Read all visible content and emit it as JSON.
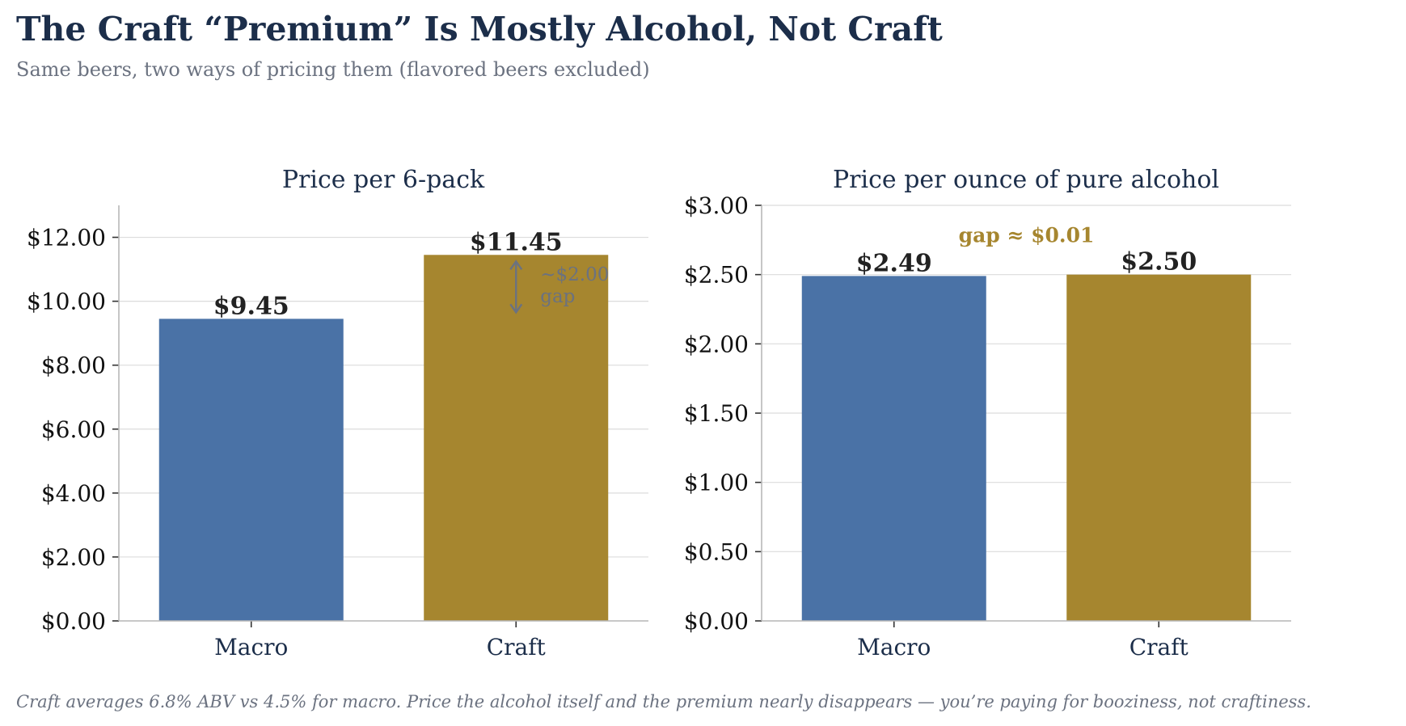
{
  "title": "The Craft “Premium” Is Mostly Alcohol, Not Craft",
  "subtitle": "Same beers, two ways of pricing them (flavored beers excluded)",
  "footnote": "Craft averages 6.8% ABV vs 4.5% for macro. Price the alcohol itself and the premium nearly disappears — you’re paying for booziness, not craftiness.",
  "colors": {
    "macro": "#4a72a6",
    "craft": "#a6862f",
    "title": "#1c2e4a",
    "muted": "#6b7280",
    "arrow": "#6b7280"
  },
  "chart_data": [
    {
      "type": "bar",
      "title": "Price per 6-pack",
      "categories": [
        "Macro",
        "Craft"
      ],
      "values": [
        9.45,
        11.45
      ],
      "value_labels": [
        "$9.45",
        "$11.45"
      ],
      "ylim": [
        0,
        13
      ],
      "yticks": [
        0,
        2,
        4,
        6,
        8,
        10,
        12
      ],
      "ytick_labels": [
        "$0.00",
        "$2.00",
        "$4.00",
        "$6.00",
        "$8.00",
        "$10.00",
        "$12.00"
      ],
      "grid": true,
      "annotation": {
        "text_lines": [
          "~$2.00",
          "gap"
        ],
        "arrow_from": 9.45,
        "arrow_to": 11.45,
        "category": "Craft"
      }
    },
    {
      "type": "bar",
      "title": "Price per ounce of pure alcohol",
      "categories": [
        "Macro",
        "Craft"
      ],
      "values": [
        2.49,
        2.5
      ],
      "value_labels": [
        "$2.49",
        "$2.50"
      ],
      "ylim": [
        0,
        3
      ],
      "yticks": [
        0,
        0.5,
        1,
        1.5,
        2,
        2.5,
        3
      ],
      "ytick_labels": [
        "$0.00",
        "$0.50",
        "$1.00",
        "$1.50",
        "$2.00",
        "$2.50",
        "$3.00"
      ],
      "grid": true,
      "annotation": {
        "text": "gap ≈ $0.01"
      }
    }
  ]
}
